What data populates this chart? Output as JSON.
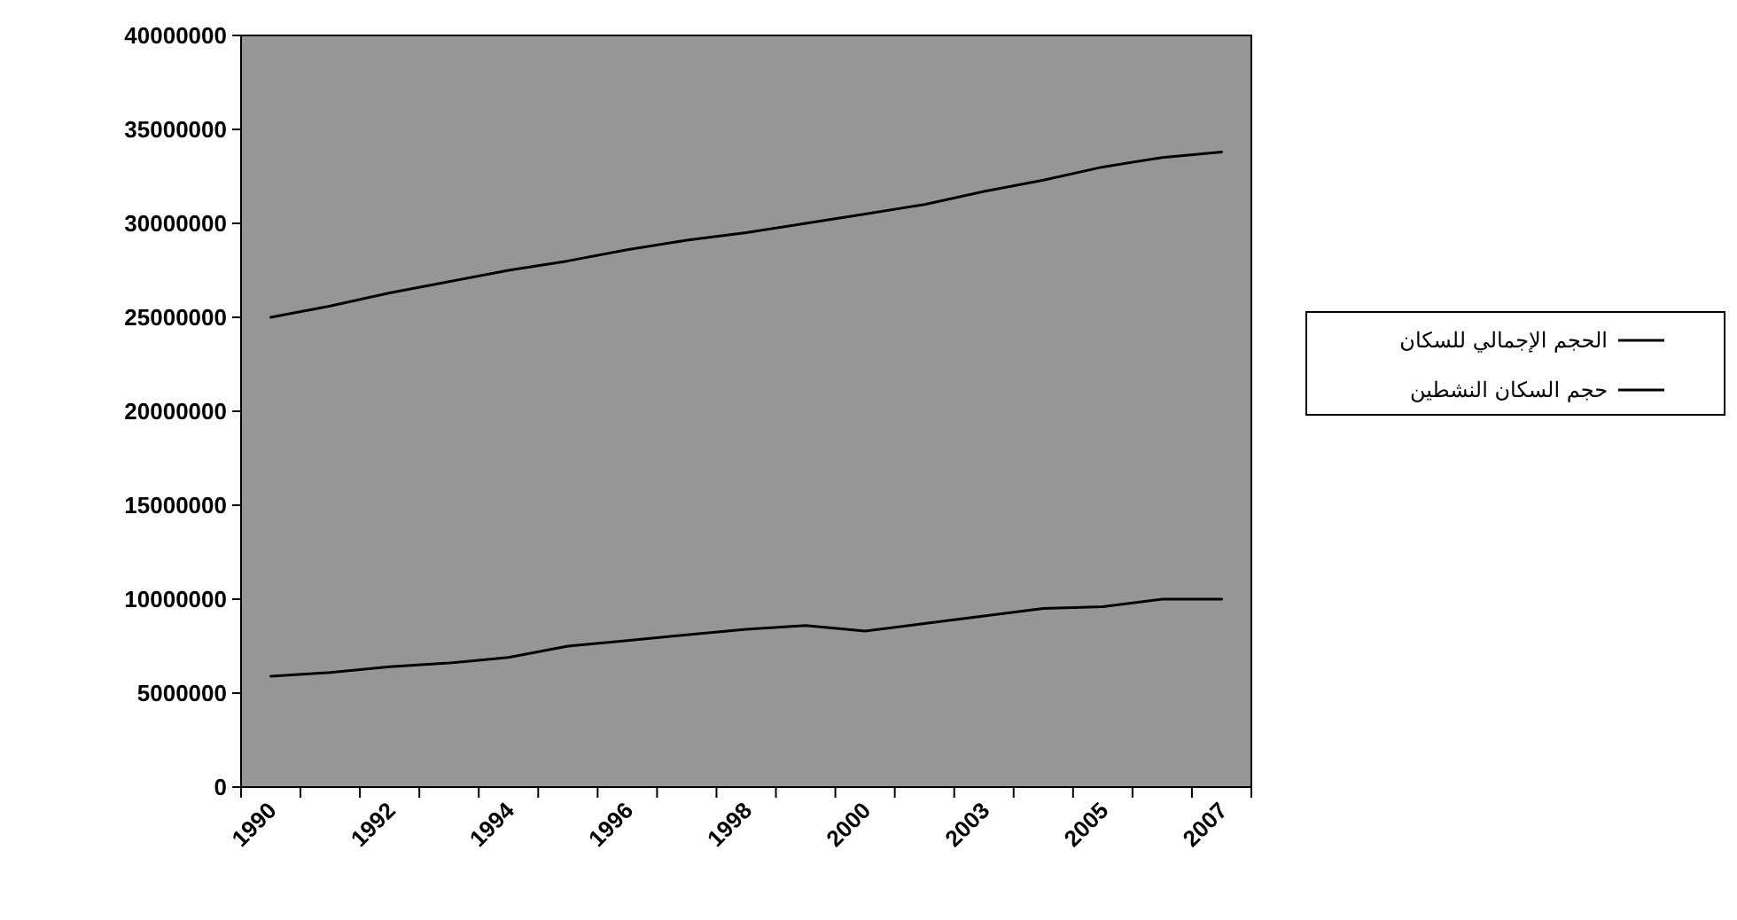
{
  "chart_data": {
    "type": "line",
    "categories": [
      "1990",
      null,
      "1992",
      null,
      "1994",
      null,
      "1996",
      null,
      "1998",
      null,
      "2000",
      null,
      "2003",
      null,
      "2005",
      null,
      "2007"
    ],
    "series": [
      {
        "name": "الحجم الإجمالي للسكان",
        "color": "#000000",
        "values": [
          25000000,
          25600000,
          26300000,
          26900000,
          27500000,
          28000000,
          28600000,
          29100000,
          29500000,
          30000000,
          30500000,
          31000000,
          31700000,
          32300000,
          33000000,
          33500000,
          33800000
        ]
      },
      {
        "name": "حجم السكان النشطين",
        "color": "#000000",
        "values": [
          5900000,
          6100000,
          6400000,
          6600000,
          6900000,
          7500000,
          7800000,
          8100000,
          8400000,
          8600000,
          8300000,
          8700000,
          9100000,
          9500000,
          9600000,
          10000000,
          10000000
        ]
      }
    ],
    "ylim": [
      0,
      40000000
    ],
    "yticks": [
      0,
      5000000,
      10000000,
      15000000,
      20000000,
      25000000,
      30000000,
      35000000,
      40000000
    ],
    "legend": "right"
  }
}
